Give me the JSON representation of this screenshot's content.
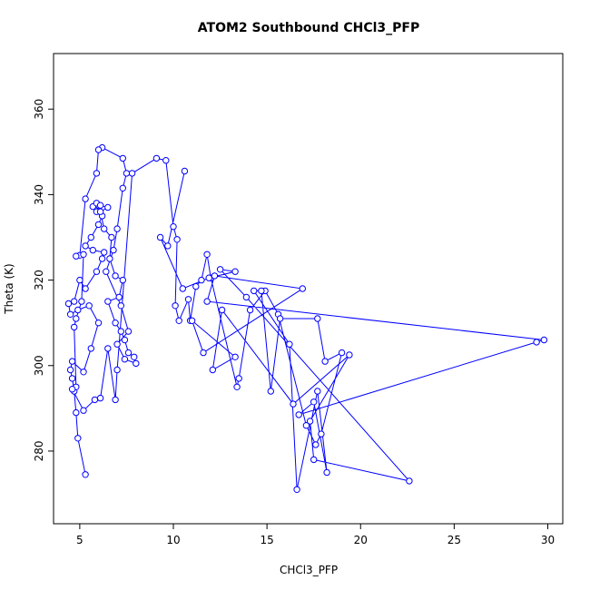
{
  "chart_data": {
    "type": "line",
    "title": "ATOM2 Southbound CHCl3_PFP",
    "xlabel": "CHCl3_PFP",
    "ylabel": "Theta (K)",
    "xlim": [
      3.6,
      30.8
    ],
    "ylim": [
      263,
      373
    ],
    "xticks": [
      5,
      10,
      15,
      20,
      25,
      30
    ],
    "xtick_labels": [
      "5",
      "10",
      "15",
      "20",
      "25",
      "30"
    ],
    "yticks": [
      280,
      300,
      320,
      340,
      360
    ],
    "ytick_labels": [
      "280",
      "300",
      "320",
      "340",
      "360"
    ],
    "grid": false,
    "legend": "none",
    "line_color": "#0000ff",
    "marker": "open-circle",
    "series": [
      {
        "points": [
          [
            5.3,
            274.5
          ],
          [
            4.9,
            283
          ],
          [
            4.8,
            289
          ],
          [
            4.7,
            294
          ],
          [
            4.6,
            297
          ],
          [
            4.5,
            299
          ],
          [
            4.6,
            301
          ],
          [
            5.2,
            298.5
          ],
          [
            5.6,
            304
          ],
          [
            6.0,
            310
          ],
          [
            5.5,
            314
          ],
          [
            4.9,
            313
          ],
          [
            4.5,
            312
          ],
          [
            4.4,
            314.5
          ],
          [
            4.7,
            315
          ],
          [
            5.0,
            320
          ],
          [
            5.3,
            318
          ],
          [
            5.9,
            322
          ],
          [
            6.2,
            325
          ],
          [
            6.3,
            326.5
          ],
          [
            5.7,
            327
          ],
          [
            5.3,
            328
          ],
          [
            5.6,
            330
          ],
          [
            6.0,
            333
          ],
          [
            6.2,
            335
          ],
          [
            5.9,
            336
          ],
          [
            6.0,
            337.5
          ],
          [
            5.7,
            337.2
          ],
          [
            5.9,
            338
          ],
          [
            6.1,
            337.5
          ],
          [
            6.5,
            337
          ],
          [
            6.1,
            336
          ],
          [
            6.3,
            332
          ],
          [
            6.7,
            330
          ],
          [
            6.6,
            325
          ],
          [
            6.9,
            321
          ],
          [
            7.3,
            320
          ],
          [
            7.1,
            316
          ],
          [
            6.5,
            315
          ],
          [
            6.9,
            310
          ],
          [
            7.2,
            308
          ],
          [
            7.4,
            306
          ],
          [
            7.6,
            303
          ],
          [
            7.9,
            302
          ],
          [
            8.0,
            300.5
          ],
          [
            7.4,
            301.5
          ],
          [
            7.0,
            305
          ],
          [
            7.6,
            308
          ],
          [
            7.2,
            314
          ],
          [
            6.4,
            322
          ],
          [
            6.8,
            327
          ],
          [
            7.0,
            332
          ],
          [
            7.3,
            341.5
          ],
          [
            7.5,
            345
          ],
          [
            7.3,
            348.5
          ],
          [
            6.2,
            351
          ],
          [
            6.0,
            350.5
          ],
          [
            5.9,
            345
          ],
          [
            5.3,
            339
          ],
          [
            5.0,
            325.8
          ],
          [
            4.8,
            325.6
          ],
          [
            5.2,
            326
          ],
          [
            5.1,
            315
          ],
          [
            4.8,
            311
          ],
          [
            4.7,
            309
          ],
          [
            4.8,
            295
          ],
          [
            4.6,
            294.5
          ],
          [
            5.2,
            289.5
          ],
          [
            5.8,
            292
          ],
          [
            6.1,
            292.4
          ],
          [
            6.5,
            304
          ],
          [
            6.9,
            292
          ],
          [
            7.0,
            299
          ],
          [
            7.8,
            345
          ],
          [
            9.1,
            348.5
          ],
          [
            9.6,
            348
          ],
          [
            10.0,
            332.5
          ],
          [
            10.2,
            329.5
          ],
          [
            10.1,
            314
          ],
          [
            10.3,
            310.5
          ],
          [
            10.8,
            315.5
          ],
          [
            10.9,
            310.5
          ],
          [
            11.2,
            318.5
          ],
          [
            11.5,
            320
          ],
          [
            11.8,
            326
          ],
          [
            12.0,
            320.5
          ],
          [
            13.4,
            295
          ],
          [
            13.5,
            297
          ],
          [
            14.1,
            313
          ],
          [
            14.9,
            317.5
          ],
          [
            15.6,
            312
          ],
          [
            17.1,
            286
          ],
          [
            17.6,
            281.5
          ],
          [
            17.9,
            284
          ],
          [
            19.0,
            303
          ],
          [
            18.1,
            301
          ],
          [
            17.7,
            311
          ],
          [
            15.7,
            311
          ],
          [
            15.2,
            294
          ],
          [
            14.7,
            317.5
          ],
          [
            14.3,
            317.5
          ],
          [
            16.2,
            305
          ],
          [
            16.6,
            271
          ],
          [
            17.7,
            294
          ],
          [
            18.2,
            275
          ],
          [
            17.5,
            291.5
          ],
          [
            16.7,
            288.5
          ],
          [
            29.4,
            305.5
          ],
          [
            29.8,
            306
          ],
          [
            11.8,
            315
          ],
          [
            12.2,
            321
          ],
          [
            16.9,
            318
          ],
          [
            11.6,
            303
          ],
          [
            11.0,
            310.5
          ],
          [
            13.3,
            302
          ],
          [
            12.1,
            299
          ],
          [
            12.6,
            313
          ],
          [
            16.4,
            291
          ],
          [
            19.4,
            302.5
          ],
          [
            17.3,
            287
          ],
          [
            17.5,
            278
          ],
          [
            22.6,
            273
          ],
          [
            13.9,
            316
          ],
          [
            12.5,
            322.5
          ],
          [
            13.3,
            322
          ],
          [
            11.9,
            320.5
          ],
          [
            10.5,
            318
          ],
          [
            9.3,
            330
          ],
          [
            9.7,
            328
          ],
          [
            10.6,
            345.5
          ]
        ]
      }
    ]
  }
}
